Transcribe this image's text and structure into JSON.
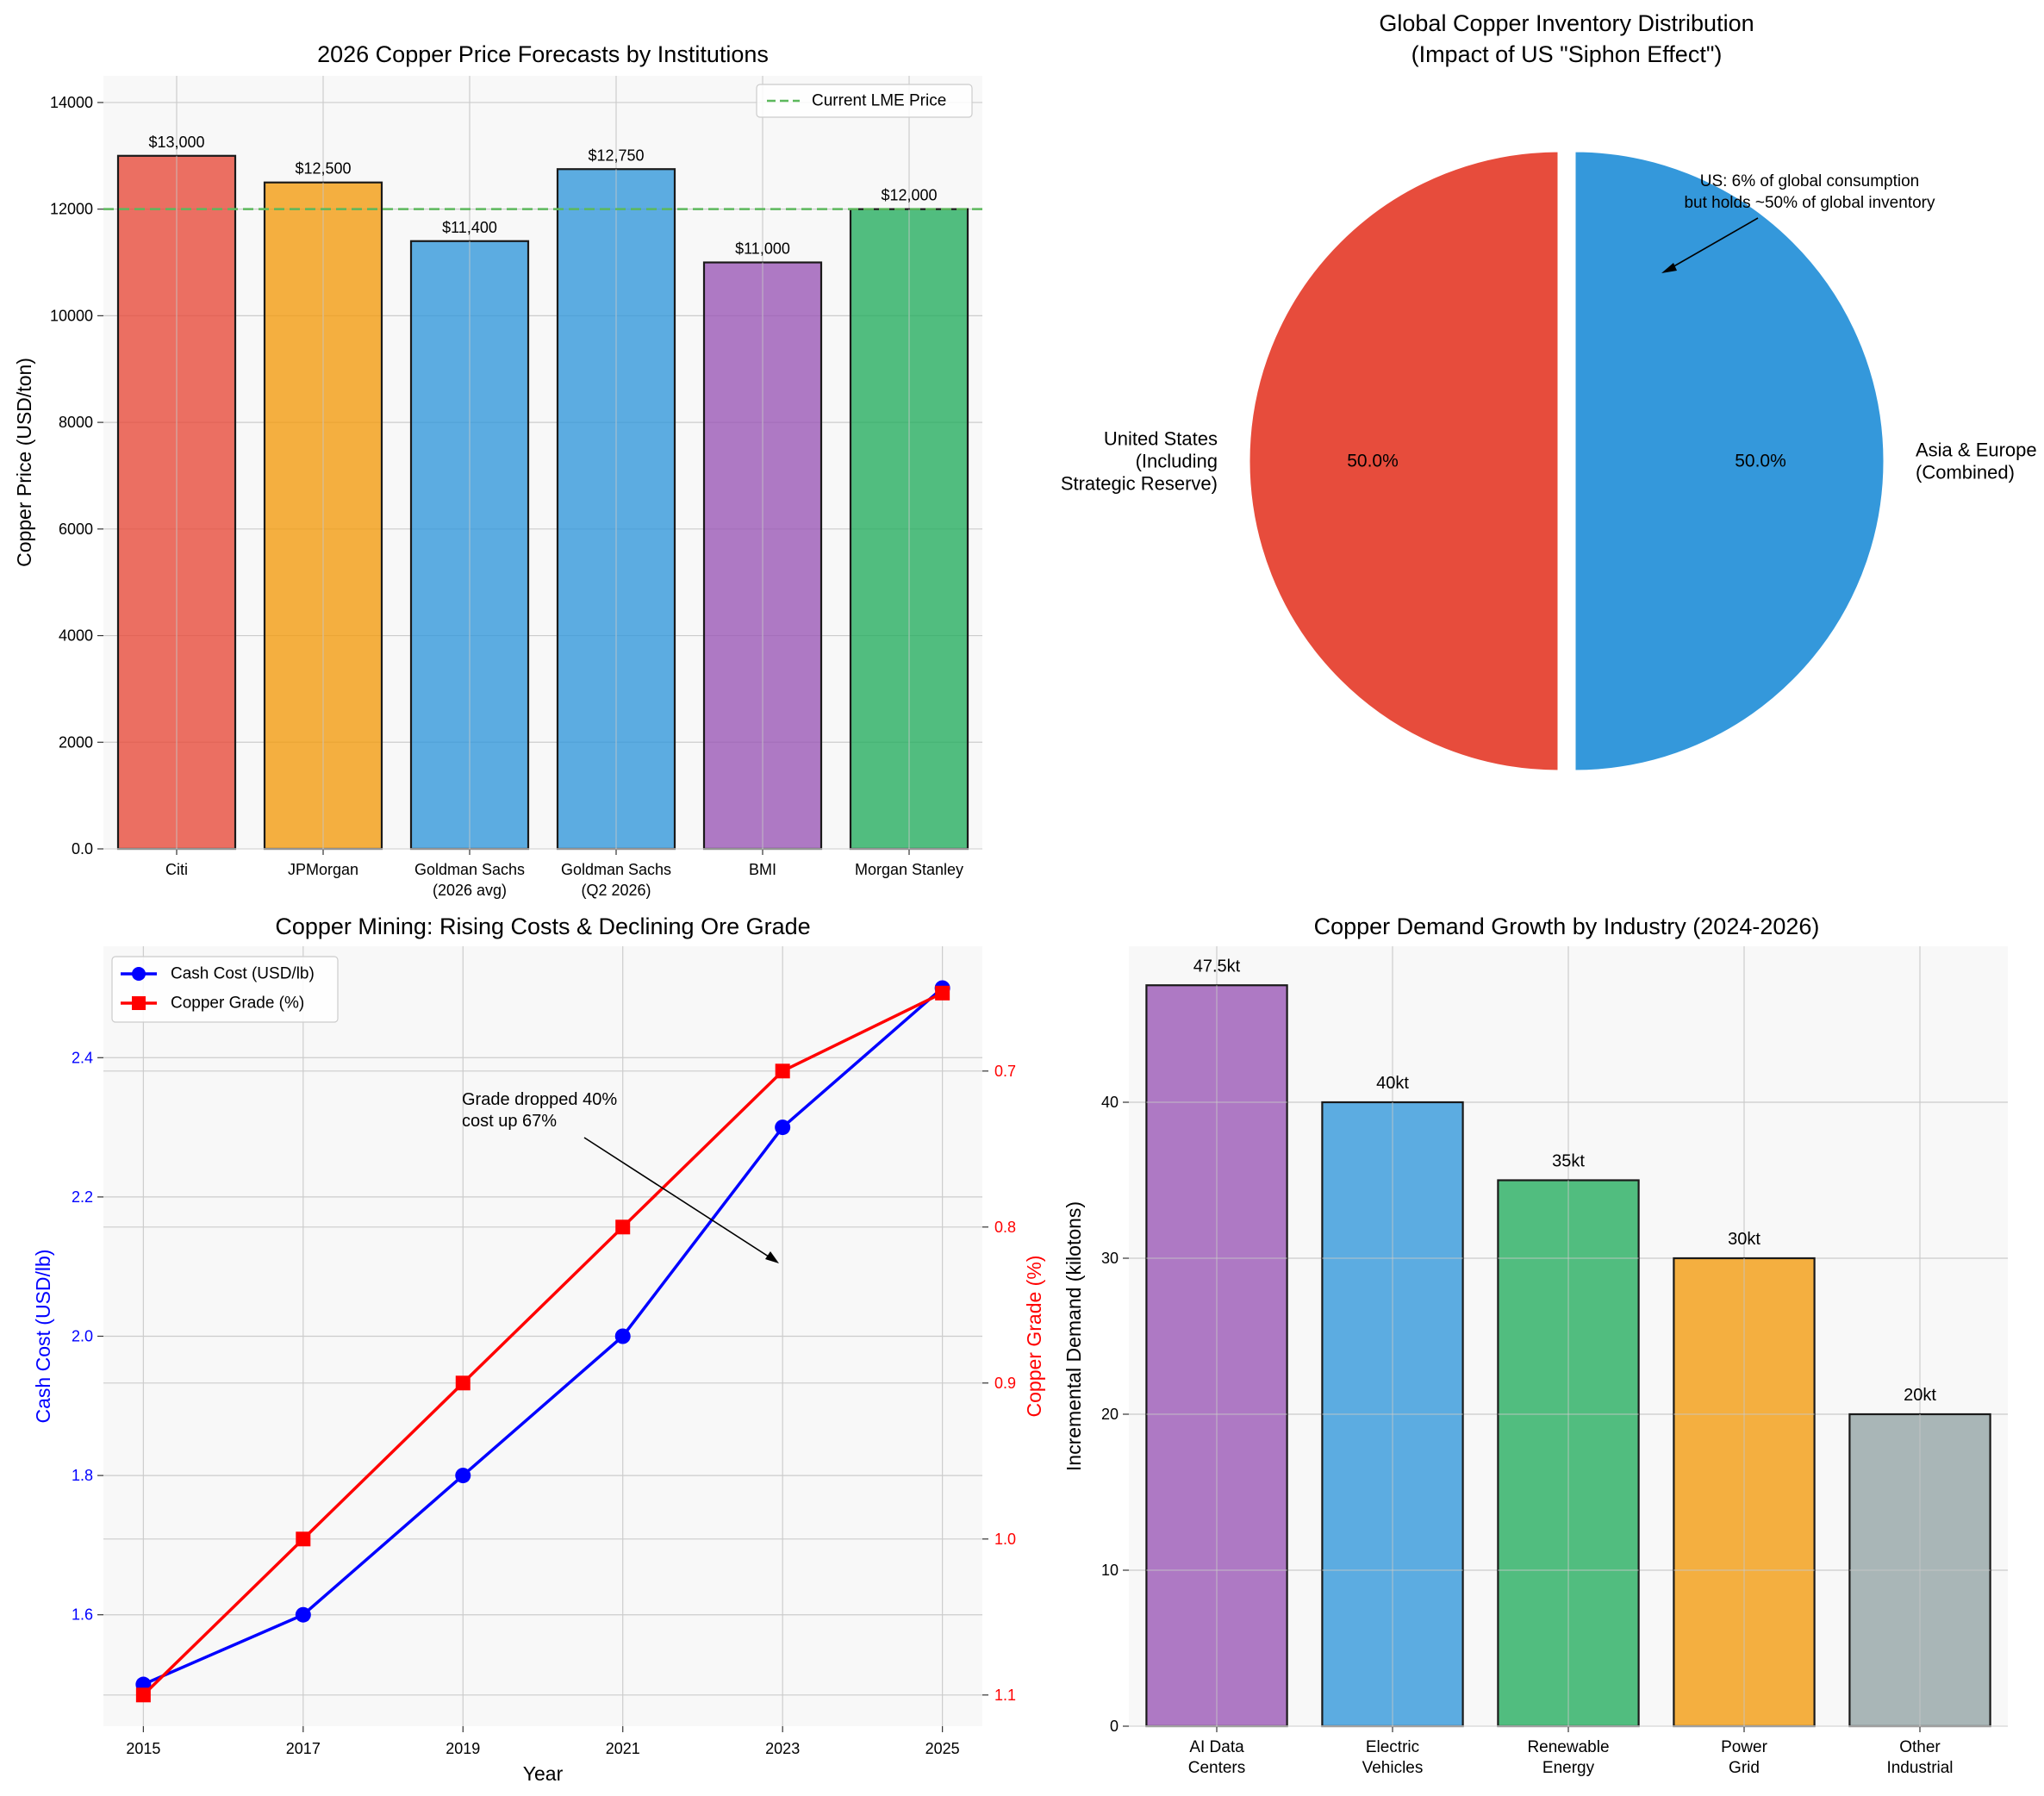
{
  "colors": {
    "red": "#E74C3C",
    "orange": "#F39C12",
    "blue": "#3498DB",
    "purple": "#9B59B6",
    "green": "#27AE60",
    "gray": "#95A5A6",
    "lme": "#5CB85C",
    "cash": "#0000FF",
    "grade": "#FF0000",
    "panel_bg": "#F8F8F8",
    "grid": "#CCCCCC"
  },
  "chart_data": [
    {
      "type": "bar",
      "title": "2026 Copper Price Forecasts by Institutions",
      "xlabel": "",
      "ylabel": "Copper Price (USD/ton)",
      "ylim": [
        0,
        14500
      ],
      "yticks": [
        0,
        2000,
        4000,
        6000,
        8000,
        10000,
        12000,
        14000
      ],
      "categories": [
        [
          "Citi"
        ],
        [
          "JPMorgan"
        ],
        [
          "Goldman Sachs",
          "(2026 avg)"
        ],
        [
          "Goldman Sachs",
          "(Q2 2026)"
        ],
        [
          "BMI"
        ],
        [
          "Morgan Stanley"
        ]
      ],
      "values": [
        13000,
        12500,
        11400,
        12750,
        11000,
        12000
      ],
      "value_labels": [
        "$13,000",
        "$12,500",
        "$11,400",
        "$12,750",
        "$11,000",
        "$12,000"
      ],
      "bar_colors": [
        "#E74C3C",
        "#F39C12",
        "#3498DB",
        "#3498DB",
        "#9B59B6",
        "#27AE60"
      ],
      "reference_line": {
        "value": 12000,
        "label": "Current LME Price"
      },
      "legend": "top-right"
    },
    {
      "type": "pie",
      "title": [
        "Global Copper Inventory Distribution",
        "(Impact of US \"Siphon Effect\")"
      ],
      "slices": [
        {
          "label": [
            "United States",
            "(Including",
            "Strategic Reserve)"
          ],
          "value": 50.0,
          "pct_label": "50.0%",
          "color": "#E74C3C"
        },
        {
          "label": [
            "Asia & Europe",
            "(Combined)"
          ],
          "value": 50.0,
          "pct_label": "50.0%",
          "color": "#3498DB"
        }
      ],
      "annotation": [
        "US: 6% of global consumption",
        "but holds ~50% of global inventory"
      ]
    },
    {
      "type": "line",
      "title": "Copper Mining: Rising Costs & Declining Ore Grade",
      "xlabel": "Year",
      "ylabel": "Cash Cost (USD/lb)",
      "y2label": "Copper Grade (%)",
      "x": [
        2015,
        2017,
        2019,
        2021,
        2023,
        2025
      ],
      "xticks": [
        2015,
        2017,
        2019,
        2021,
        2023,
        2025
      ],
      "ylim": [
        1.44,
        2.56
      ],
      "yticks": [
        1.6,
        1.8,
        2.0,
        2.2,
        2.4
      ],
      "y2lim": [
        1.12,
        0.62
      ],
      "y2ticks": [
        1.1,
        1.0,
        0.9,
        0.8,
        0.7
      ],
      "series": [
        {
          "name": "Cash Cost (USD/lb)",
          "axis": "left",
          "values": [
            1.5,
            1.6,
            1.8,
            2.0,
            2.3,
            2.5
          ],
          "marker": "circle",
          "color": "#0000FF"
        },
        {
          "name": "Copper Grade (%)",
          "axis": "right",
          "values": [
            1.1,
            1.0,
            0.9,
            0.8,
            0.7,
            0.65
          ],
          "marker": "square",
          "color": "#FF0000"
        }
      ],
      "annotation": [
        "Grade dropped 40%",
        "cost up 67%"
      ],
      "legend": "top-left"
    },
    {
      "type": "bar",
      "title": "Copper Demand Growth by Industry (2024-2026)",
      "xlabel": "",
      "ylabel": "Incremental Demand (kilotons)",
      "ylim": [
        0,
        50
      ],
      "yticks": [
        0,
        10,
        20,
        30,
        40
      ],
      "categories": [
        [
          "AI Data",
          "Centers"
        ],
        [
          "Electric",
          "Vehicles"
        ],
        [
          "Renewable",
          "Energy"
        ],
        [
          "Power",
          "Grid"
        ],
        [
          "Other",
          "Industrial"
        ]
      ],
      "values": [
        47.5,
        40,
        35,
        30,
        20
      ],
      "value_labels": [
        "47.5kt",
        "40kt",
        "35kt",
        "30kt",
        "20kt"
      ],
      "bar_colors": [
        "#9B59B6",
        "#3498DB",
        "#27AE60",
        "#F39C12",
        "#95A5A6"
      ]
    }
  ]
}
